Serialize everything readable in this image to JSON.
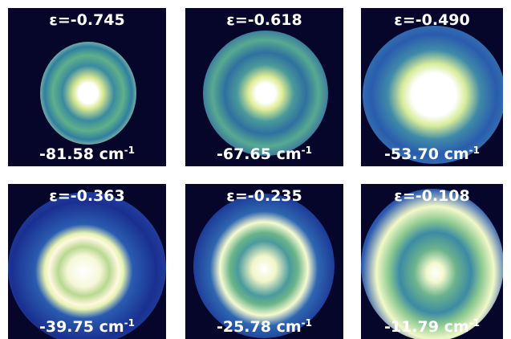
{
  "panels": [
    {
      "epsilon": "ε=-0.745",
      "energy": "-81.58 cm",
      "exponent": "-1"
    },
    {
      "epsilon": "ε=-0.618",
      "energy": "-67.65 cm",
      "exponent": "-1"
    },
    {
      "epsilon": "ε=-0.490",
      "energy": "-53.70 cm",
      "exponent": "-1"
    },
    {
      "epsilon": "ε=-0.363",
      "energy": "-39.75 cm",
      "exponent": "-1"
    },
    {
      "epsilon": "ε=-0.235",
      "energy": "-25.78 cm",
      "exponent": "-1"
    },
    {
      "epsilon": "ε=-0.108",
      "energy": "-11.79 cm",
      "exponent": "-1"
    }
  ]
}
